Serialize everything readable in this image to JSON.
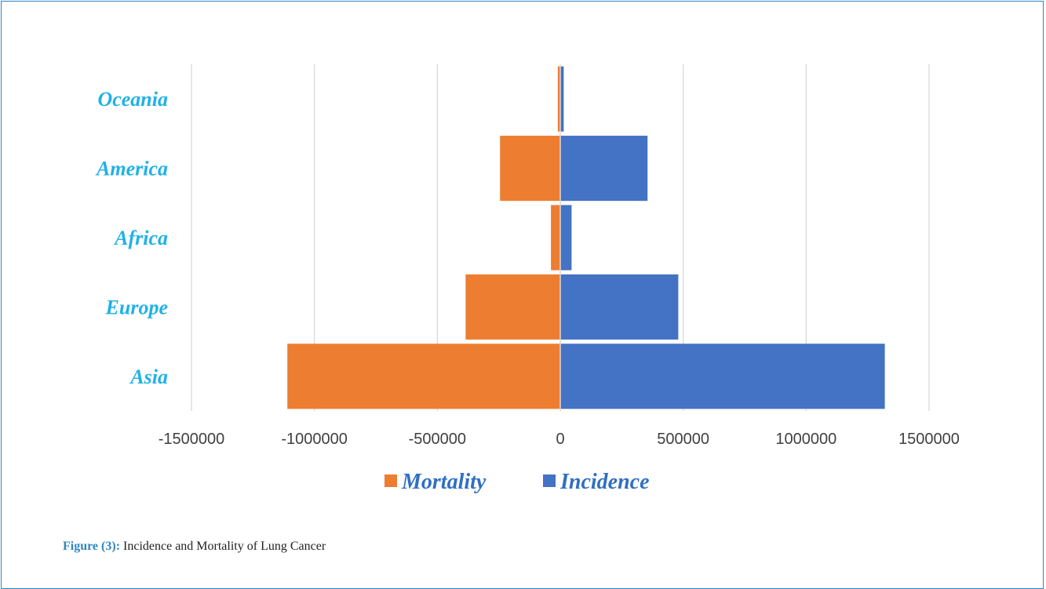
{
  "caption": {
    "figure_label": "Figure (3):",
    "text": " Incidence and Mortality of Lung Cancer"
  },
  "colors": {
    "mortality": "#ed7d31",
    "incidence": "#4472c4",
    "category_label": "#1fb1e8"
  },
  "chart_data": {
    "type": "bar",
    "orientation": "horizontal",
    "categories": [
      "Oceania",
      "America",
      "Africa",
      "Europe",
      "Asia"
    ],
    "series": [
      {
        "name": "Mortality",
        "values": [
          -10000,
          -245000,
          -38000,
          -385000,
          -1110000
        ]
      },
      {
        "name": "Incidence",
        "values": [
          14000,
          355000,
          46000,
          480000,
          1320000
        ]
      }
    ],
    "xlim": [
      -1500000,
      1500000
    ],
    "xticks": [
      "-1500000",
      "-1000000",
      "-500000",
      "0",
      "500000",
      "1000000",
      "1500000"
    ],
    "xtick_values": [
      -1500000,
      -1000000,
      -500000,
      0,
      500000,
      1000000,
      1500000
    ],
    "grid": true,
    "legend_position": "bottom"
  }
}
